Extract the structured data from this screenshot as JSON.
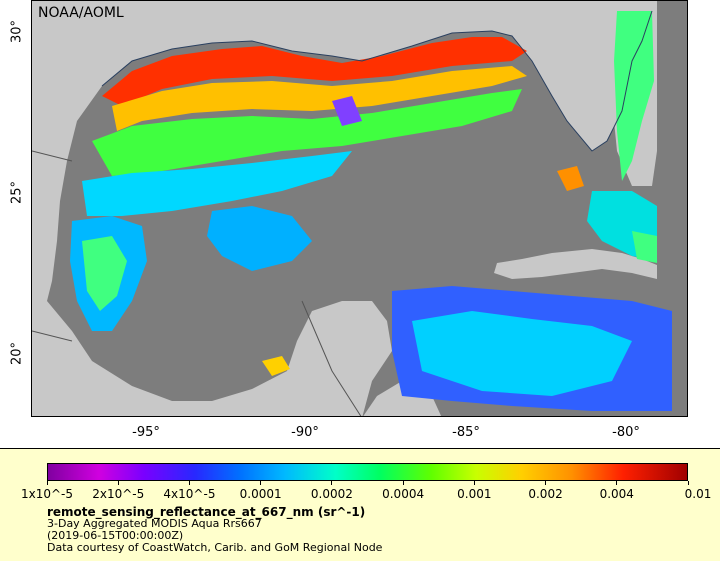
{
  "map": {
    "credit": "NOAA/AOML",
    "lat_ticks": [
      "30°",
      "25°",
      "20°"
    ],
    "lon_ticks": [
      "-95°",
      "-90°",
      "-85°",
      "-80°"
    ]
  },
  "colorbar": {
    "tick_labels": [
      "1x10^-5",
      "2x10^-5",
      "4x10^-5",
      "0.0001",
      "0.0002",
      "0.0004",
      "0.001",
      "0.002",
      "0.004",
      "0.01"
    ],
    "scale": "log",
    "range": [
      1e-05,
      0.01
    ]
  },
  "legend": {
    "title": "remote_sensing_reflectance_at_667_nm (sr^-1)",
    "line1": "3-Day Aggregated MODIS Aqua Rrs667",
    "line2": "(2019-06-15T00:00:00Z)",
    "line3": "Data courtesy of CoastWatch, Carib. and GoM Regional Node"
  },
  "colors": {
    "land": "#c8c8c8",
    "no_data": "#7d7d7d",
    "legend_bg": "#ffffcc"
  }
}
